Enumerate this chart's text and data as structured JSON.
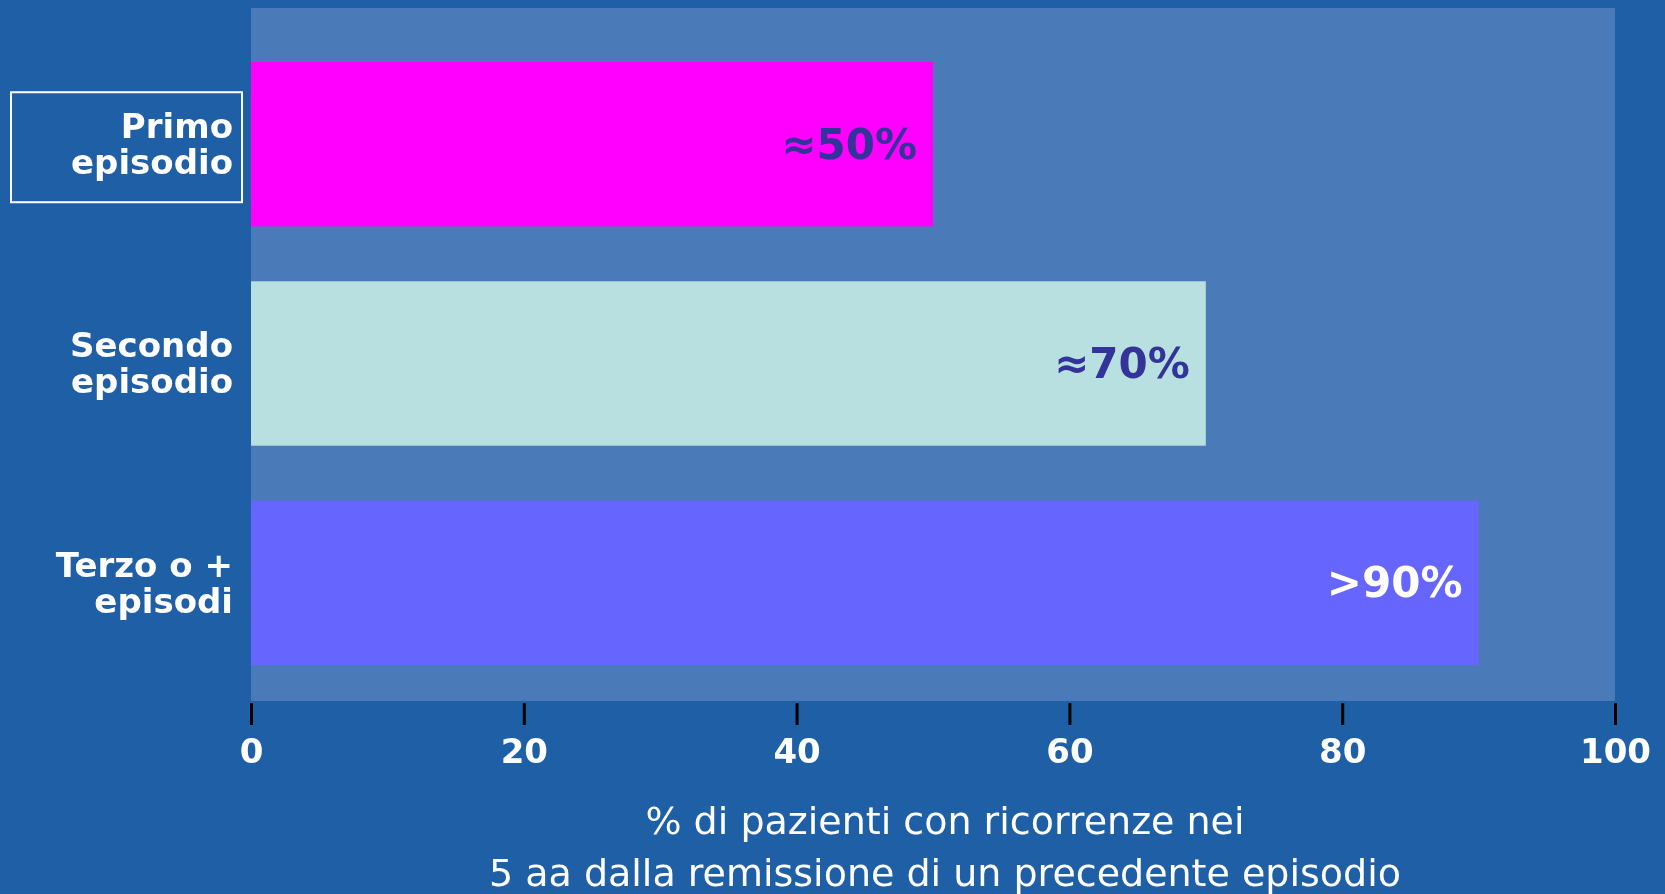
{
  "chart_data": {
    "type": "bar",
    "orientation": "horizontal",
    "categories": [
      "Primo\nepisodio",
      "Secondo\nepisodio",
      "Terzo o +\nepisodi"
    ],
    "values": [
      50,
      70,
      90
    ],
    "colors": [
      "#ff00ff",
      "#b8e0e0",
      "#6666ff"
    ],
    "value_labels": [
      "≈50%",
      "≈70%",
      ">90%"
    ],
    "xlabel": "% di pazienti con ricorrenze nei\n5 aa dalla remissione di un precedente episodio",
    "xlim": [
      0,
      100
    ],
    "xticks": [
      0,
      20,
      40,
      60,
      80,
      100
    ],
    "grid": false
  }
}
